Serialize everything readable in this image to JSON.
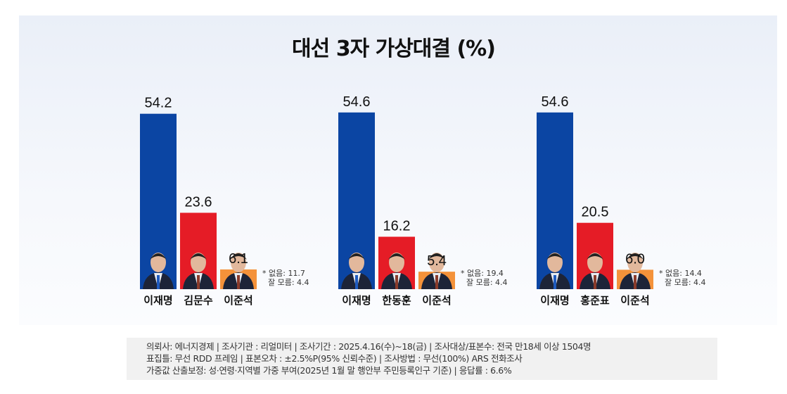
{
  "chart_data": {
    "type": "bar",
    "title": "대선  3자 가상대결 (%)",
    "groups": [
      {
        "candidates": [
          "이재명",
          "김문수",
          "이준석"
        ],
        "values": [
          54.2,
          23.6,
          6.1
        ],
        "note_lines": [
          "* 없음: 11.7",
          "잘 모름: 4.4"
        ]
      },
      {
        "candidates": [
          "이재명",
          "한동훈",
          "이준석"
        ],
        "values": [
          54.6,
          16.2,
          5.4
        ],
        "note_lines": [
          "* 없음: 19.4",
          "잘 모름: 4.4"
        ]
      },
      {
        "candidates": [
          "이재명",
          "홍준표",
          "이준석"
        ],
        "values": [
          54.6,
          20.5,
          6.0
        ],
        "note_lines": [
          "* 없음: 14.4",
          "잘 모름: 4.4"
        ]
      }
    ],
    "colors": [
      "#0b45a3",
      "#e51c26",
      "#f4923a"
    ],
    "ylim": [
      0,
      60
    ]
  },
  "footer": {
    "lines": [
      "의뢰사: 에너지경제 | 조사기관 : 리얼미터  |  조사기간 : 2025.4.16(수)~18(금) | 조사대상/표본수: 전국 만18세 이상 1504명",
      "표집틀: 무선 RDD 프레임 | 표본오차 : ±2.5%P(95% 신뢰수준) | 조사방법 : 무선(100%) ARS 전화조사",
      "가중값 산출보정: 성·연령·지역별 가중 부여(2025년 1월 말 행안부 주민등록인구 기준) | 응답률 : 6.6%"
    ]
  }
}
